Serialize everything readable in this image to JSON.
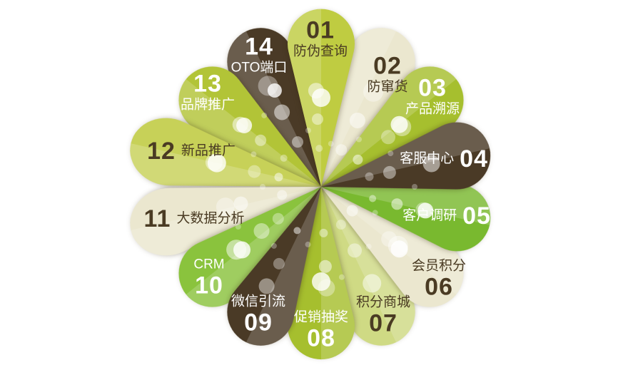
{
  "background": "#ffffff",
  "dot_color": "#ffffff",
  "petals": [
    {
      "number": "01",
      "label": "防伪查询",
      "color": "#bfcc41",
      "text_color": "#4a3b23"
    },
    {
      "number": "02",
      "label": "防窜货",
      "color": "#ebe7cf",
      "text_color": "#4a3b23"
    },
    {
      "number": "03",
      "label": "产品溯源",
      "color": "#a6bf2e",
      "text_color": "#ffffff"
    },
    {
      "number": "04",
      "label": "客服中心",
      "color": "#4a3a26",
      "text_color": "#ffffff"
    },
    {
      "number": "05",
      "label": "客户调研",
      "color": "#79b92f",
      "text_color": "#ffffff"
    },
    {
      "number": "06",
      "label": "会员积分",
      "color": "#ebe7cf",
      "text_color": "#4a3b23"
    },
    {
      "number": "07",
      "label": "积分商城",
      "color": "#cfda84",
      "text_color": "#4a3b23"
    },
    {
      "number": "08",
      "label": "促销抽奖",
      "color": "#a6bf2e",
      "text_color": "#ffffff"
    },
    {
      "number": "09",
      "label": "微信引流",
      "color": "#4a3a26",
      "text_color": "#ffffff"
    },
    {
      "number": "10",
      "label": "CRM",
      "color": "#8ac33d",
      "text_color": "#ffffff"
    },
    {
      "number": "11",
      "label": "大数据分析",
      "color": "#ebe7cf",
      "text_color": "#4a3b23"
    },
    {
      "number": "12",
      "label": "新品推广",
      "color": "#c7d158",
      "text_color": "#4a3b23"
    },
    {
      "number": "13",
      "label": "品牌推广",
      "color": "#b2c437",
      "text_color": "#ffffff"
    },
    {
      "number": "14",
      "label": "OTO端口",
      "color": "#4a3a26",
      "text_color": "#ffffff"
    }
  ]
}
